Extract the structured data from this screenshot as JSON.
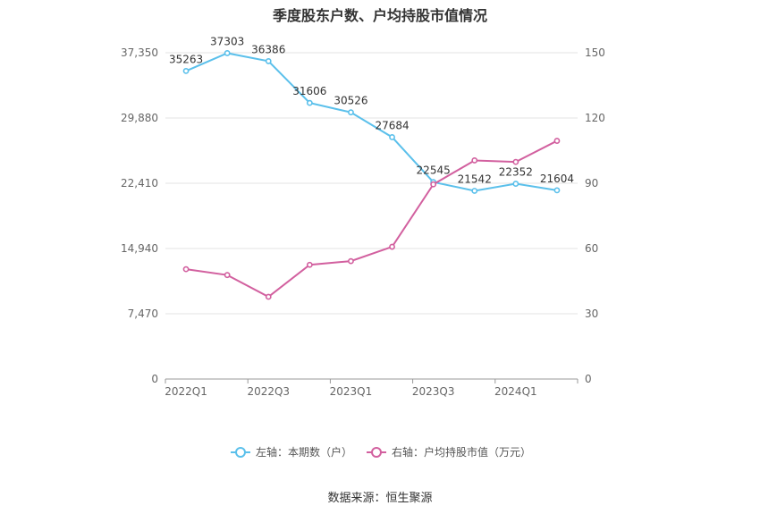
{
  "title": "季度股东户数、户均持股市值情况",
  "source": "数据来源：恒生聚源",
  "colors": {
    "left_series": "#5bc0eb",
    "right_series": "#d2609f",
    "grid": "#e3e3e3",
    "axis": "#999999"
  },
  "chart_data": {
    "type": "line",
    "title": "季度股东户数、户均持股市值情况",
    "x": [
      "2022Q1",
      "2022Q2",
      "2022Q3",
      "2022Q4",
      "2023Q1",
      "2023Q2",
      "2023Q3",
      "2023Q4",
      "2024Q1",
      "2024Q2"
    ],
    "x_tick_labels": [
      "2022Q1",
      "2022Q3",
      "2023Q1",
      "2023Q3",
      "2024Q1"
    ],
    "left_axis": {
      "ylim": [
        0,
        37350
      ],
      "ticks": [
        "0",
        "7,470",
        "14,940",
        "22,410",
        "29,880",
        "37,350"
      ]
    },
    "right_axis": {
      "ylim": [
        0,
        150
      ],
      "ticks": [
        "0",
        "30",
        "60",
        "90",
        "120",
        "150"
      ]
    },
    "grid": true,
    "legend_position": "bottom",
    "series": [
      {
        "name": "左轴：本期数（户）",
        "axis": "left",
        "values": [
          35263,
          37303,
          36386,
          31606,
          30526,
          27684,
          22545,
          21542,
          22352,
          21604
        ],
        "labels": [
          "35263",
          "37303",
          "36386",
          "31606",
          "30526",
          "27684",
          "22545",
          "21542",
          "22352",
          "21604"
        ]
      },
      {
        "name": "右轴：户均持股市值（万元）",
        "axis": "right",
        "values": [
          50.5,
          47.8,
          37.8,
          52.5,
          54.2,
          60.8,
          89.5,
          100.5,
          99.8,
          109.5
        ]
      }
    ]
  }
}
